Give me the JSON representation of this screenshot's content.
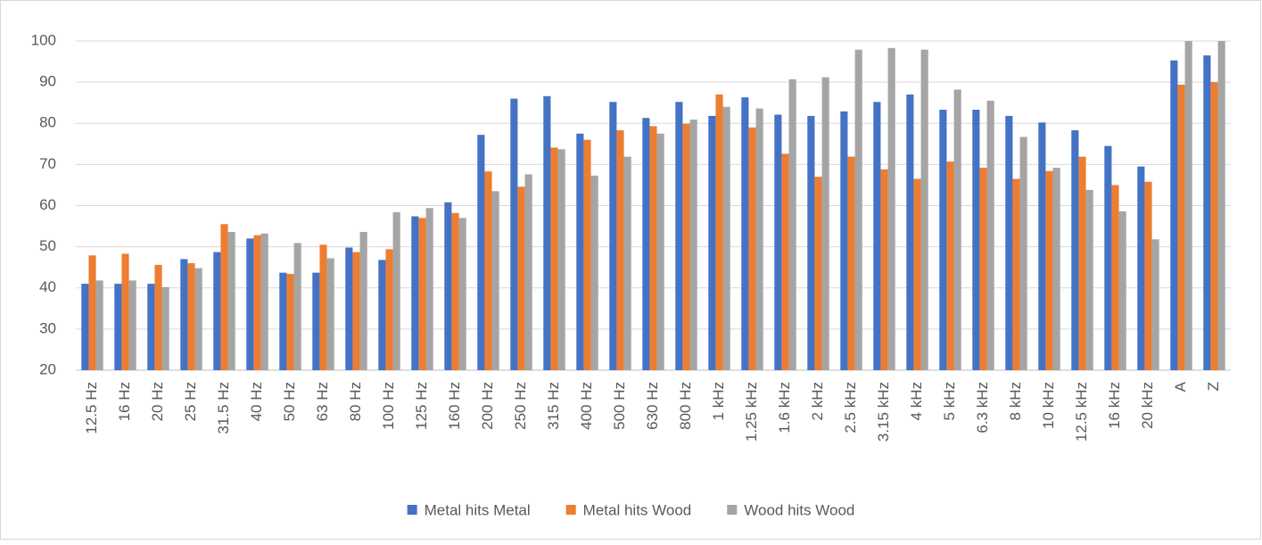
{
  "chart_data": {
    "type": "bar",
    "categories": [
      "12.5 Hz",
      "16 Hz",
      "20 Hz",
      "25 Hz",
      "31.5 Hz",
      "40 Hz",
      "50 Hz",
      "63 Hz",
      "80 Hz",
      "100 Hz",
      "125 Hz",
      "160 Hz",
      "200 Hz",
      "250 Hz",
      "315 Hz",
      "400 Hz",
      "500 Hz",
      "630 Hz",
      "800 Hz",
      "1 kHz",
      "1.25 kHz",
      "1.6 kHz",
      "2 kHz",
      "2.5 kHz",
      "3.15 kHz",
      "4 kHz",
      "5 kHz",
      "6.3 kHz",
      "8 kHz",
      "10 kHz",
      "12.5 kHz",
      "16 kHz",
      "20 kHz",
      "A",
      "Z"
    ],
    "series": [
      {
        "name": "Metal hits Metal",
        "color": "#4472c4",
        "values": [
          41,
          41,
          41,
          47,
          48.7,
          52,
          43.7,
          43.7,
          49.8,
          46.8,
          57.4,
          60.8,
          77.2,
          86,
          86.6,
          77.5,
          85.2,
          81.3,
          85.2,
          81.8,
          86.3,
          82.1,
          81.8,
          82.9,
          85.2,
          87,
          83.3,
          83.3,
          81.8,
          80.2,
          78.3,
          74.5,
          69.5,
          95.3,
          96.5
        ]
      },
      {
        "name": "Metal hits Wood",
        "color": "#ed7d31",
        "values": [
          47.9,
          48.3,
          45.6,
          46,
          55.5,
          52.8,
          43.4,
          50.5,
          48.7,
          49.4,
          57,
          58.2,
          68.3,
          64.6,
          74.1,
          76,
          78.3,
          79.3,
          79.9,
          87,
          79,
          72.6,
          67,
          71.9,
          68.8,
          66.5,
          70.7,
          69.2,
          66.5,
          68.4,
          71.9,
          65,
          65.8,
          89.4,
          90
        ]
      },
      {
        "name": "Wood hits Wood",
        "color": "#a5a5a5",
        "values": [
          41.8,
          41.8,
          40.2,
          44.8,
          53.6,
          53.2,
          50.9,
          47.2,
          53.6,
          58.4,
          59.4,
          57,
          63.5,
          67.6,
          73.7,
          67.3,
          71.9,
          77.5,
          80.9,
          84,
          83.6,
          90.7,
          91.2,
          97.9,
          98.3,
          97.9,
          88.2,
          85.5,
          76.7,
          69.2,
          63.8,
          58.6,
          51.8,
          100,
          100
        ]
      }
    ],
    "ylim": [
      20,
      100
    ],
    "yticks": [
      20,
      30,
      40,
      50,
      60,
      70,
      80,
      90,
      100
    ],
    "grid": true,
    "legend": "bottom"
  }
}
